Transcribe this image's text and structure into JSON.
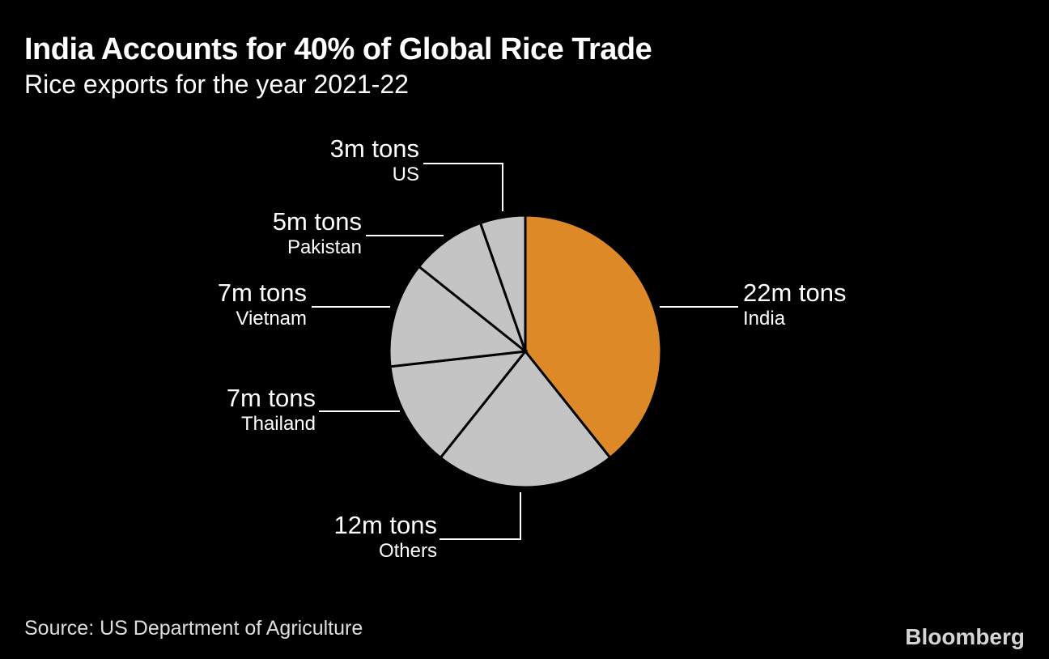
{
  "header": {
    "title": "India Accounts for 40% of Global Rice Trade",
    "subtitle": "Rice exports for the year 2021-22"
  },
  "footer": {
    "source": "Source: US Department of Agriculture",
    "brand": "Bloomberg"
  },
  "colors": {
    "background": "#000000",
    "highlight": "#DE8927",
    "muted": "#C4C4C4",
    "separator": "#000000",
    "text": "#FFFFFF",
    "leader_line": "#FFFFFF"
  },
  "chart_data": {
    "type": "pie",
    "title": "India Accounts for 40% of Global Rice Trade",
    "subtitle": "Rice exports for the year 2021-22",
    "unit": "m tons",
    "total": 56,
    "start_angle_deg": 0,
    "direction": "clockwise",
    "legend": "none",
    "slices": [
      {
        "label": "India",
        "value": 22,
        "value_label": "22m tons",
        "color": "#DE8927"
      },
      {
        "label": "Others",
        "value": 12,
        "value_label": "12m tons",
        "color": "#C4C4C4"
      },
      {
        "label": "Thailand",
        "value": 7,
        "value_label": "7m tons",
        "color": "#C4C4C4"
      },
      {
        "label": "Vietnam",
        "value": 7,
        "value_label": "7m tons",
        "color": "#C4C4C4"
      },
      {
        "label": "Pakistan",
        "value": 5,
        "value_label": "5m tons",
        "color": "#C4C4C4"
      },
      {
        "label": "US",
        "value": 3,
        "value_label": "3m tons",
        "color": "#C4C4C4"
      }
    ]
  }
}
